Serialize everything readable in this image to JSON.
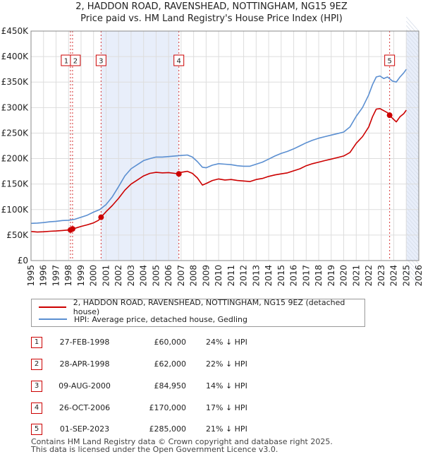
{
  "chart_data": {
    "type": "line",
    "title": "2, HADDON ROAD, RAVENSHEAD, NOTTINGHAM, NG15 9EZ",
    "subtitle": "Price paid vs. HM Land Registry's House Price Index (HPI)",
    "xlabel": "",
    "ylabel": "",
    "xlim": [
      1995,
      2026
    ],
    "ylim": [
      0,
      450000
    ],
    "x_ticks": [
      "1995",
      "1996",
      "1997",
      "1998",
      "1999",
      "2000",
      "2001",
      "2002",
      "2003",
      "2004",
      "2005",
      "2006",
      "2007",
      "2008",
      "2009",
      "2010",
      "2011",
      "2012",
      "2013",
      "2014",
      "2015",
      "2016",
      "2017",
      "2018",
      "2019",
      "2020",
      "2021",
      "2022",
      "2023",
      "2024",
      "2025",
      "2026"
    ],
    "y_ticks": [
      {
        "value": 0,
        "label": "£0"
      },
      {
        "value": 50000,
        "label": "£50K"
      },
      {
        "value": 100000,
        "label": "£100K"
      },
      {
        "value": 150000,
        "label": "£150K"
      },
      {
        "value": 200000,
        "label": "£200K"
      },
      {
        "value": 250000,
        "label": "£250K"
      },
      {
        "value": 300000,
        "label": "£300K"
      },
      {
        "value": 350000,
        "label": "£350K"
      },
      {
        "value": 400000,
        "label": "£400K"
      },
      {
        "value": 450000,
        "label": "£450K"
      }
    ],
    "grid": true,
    "shaded_ranges": [
      [
        2000.6,
        2006.8
      ],
      [
        2025.0,
        2026.0
      ]
    ],
    "series": [
      {
        "name": "2, HADDON ROAD, RAVENSHEAD, NOTTINGHAM, NG15 9EZ (detached house)",
        "color": "#cc0000",
        "x": [
          1995.0,
          1995.5,
          1996.0,
          1996.5,
          1997.0,
          1997.5,
          1998.0,
          1998.15,
          1998.32,
          1998.6,
          1999.0,
          1999.5,
          2000.0,
          2000.4,
          2000.6,
          2001.0,
          2001.5,
          2002.0,
          2002.5,
          2003.0,
          2003.5,
          2004.0,
          2004.5,
          2005.0,
          2005.5,
          2006.0,
          2006.5,
          2006.82,
          2007.0,
          2007.5,
          2007.9,
          2008.3,
          2008.7,
          2009.0,
          2009.5,
          2010.0,
          2010.5,
          2011.0,
          2011.5,
          2012.0,
          2012.5,
          2013.0,
          2013.5,
          2014.0,
          2014.5,
          2015.0,
          2015.5,
          2016.0,
          2016.5,
          2017.0,
          2017.5,
          2018.0,
          2018.5,
          2019.0,
          2019.5,
          2020.0,
          2020.5,
          2021.0,
          2021.5,
          2022.0,
          2022.3,
          2022.6,
          2022.9,
          2023.2,
          2023.5,
          2023.67,
          2023.9,
          2024.2,
          2024.5,
          2024.8,
          2025.0
        ],
        "values": [
          57000,
          56000,
          56500,
          57500,
          58000,
          59000,
          60000,
          60000,
          62000,
          64000,
          67000,
          70000,
          74000,
          79000,
          84950,
          96000,
          108000,
          122000,
          138000,
          150000,
          158000,
          166000,
          171000,
          173000,
          172000,
          172500,
          171000,
          170000,
          173000,
          175000,
          171000,
          162000,
          148000,
          151000,
          157000,
          160000,
          158000,
          159000,
          157000,
          156000,
          155000,
          159000,
          161000,
          165000,
          168000,
          170000,
          172000,
          176000,
          180000,
          186000,
          190000,
          193000,
          196000,
          199000,
          202000,
          205000,
          212000,
          230000,
          243000,
          262000,
          282000,
          297000,
          298000,
          294000,
          290000,
          285000,
          279000,
          272000,
          282000,
          288000,
          295000
        ]
      },
      {
        "name": "HPI: Average price, detached house, Gedling",
        "color": "#5b8fd1",
        "x": [
          1995.0,
          1995.5,
          1996.0,
          1996.5,
          1997.0,
          1997.5,
          1998.0,
          1998.5,
          1999.0,
          1999.5,
          2000.0,
          2000.5,
          2001.0,
          2001.5,
          2002.0,
          2002.5,
          2003.0,
          2003.5,
          2004.0,
          2004.5,
          2005.0,
          2005.5,
          2006.0,
          2006.5,
          2007.0,
          2007.5,
          2007.9,
          2008.3,
          2008.7,
          2009.0,
          2009.5,
          2010.0,
          2010.5,
          2011.0,
          2011.5,
          2012.0,
          2012.5,
          2013.0,
          2013.5,
          2014.0,
          2014.5,
          2015.0,
          2015.5,
          2016.0,
          2016.5,
          2017.0,
          2017.5,
          2018.0,
          2018.5,
          2019.0,
          2019.5,
          2020.0,
          2020.5,
          2021.0,
          2021.5,
          2022.0,
          2022.3,
          2022.6,
          2022.9,
          2023.2,
          2023.5,
          2023.9,
          2024.2,
          2024.5,
          2024.8,
          2025.0
        ],
        "values": [
          73000,
          73500,
          74500,
          76000,
          77000,
          78500,
          79000,
          81000,
          85000,
          89000,
          95000,
          100000,
          110000,
          125000,
          145000,
          166000,
          180000,
          188000,
          196000,
          200000,
          203000,
          203000,
          204000,
          205000,
          206000,
          207000,
          203000,
          194000,
          183000,
          182000,
          187000,
          190000,
          189000,
          188000,
          186000,
          185000,
          185000,
          189000,
          193000,
          199000,
          205000,
          210000,
          214000,
          219000,
          225000,
          231000,
          236000,
          240000,
          243000,
          246000,
          249000,
          252000,
          262000,
          283000,
          300000,
          325000,
          345000,
          360000,
          362000,
          357000,
          360000,
          352000,
          350000,
          360000,
          368000,
          375000
        ]
      }
    ],
    "annotations": [
      {
        "label": "1",
        "x": 1998.15,
        "value": 60000
      },
      {
        "label": "2",
        "x": 1998.32,
        "value": 62000
      },
      {
        "label": "3",
        "x": 2000.6,
        "value": 84950
      },
      {
        "label": "4",
        "x": 2006.82,
        "value": 170000
      },
      {
        "label": "5",
        "x": 2023.67,
        "value": 285000
      }
    ]
  },
  "sales": [
    {
      "num": "1",
      "date": "27-FEB-1998",
      "price": "£60,000",
      "hpi": "24% ↓ HPI"
    },
    {
      "num": "2",
      "date": "28-APR-1998",
      "price": "£62,000",
      "hpi": "22% ↓ HPI"
    },
    {
      "num": "3",
      "date": "09-AUG-2000",
      "price": "£84,950",
      "hpi": "14% ↓ HPI"
    },
    {
      "num": "4",
      "date": "26-OCT-2006",
      "price": "£170,000",
      "hpi": "17% ↓ HPI"
    },
    {
      "num": "5",
      "date": "01-SEP-2023",
      "price": "£285,000",
      "hpi": "21% ↓ HPI"
    }
  ],
  "footer": {
    "line1": "Contains HM Land Registry data © Crown copyright and database right 2025.",
    "line2": "This data is licensed under the Open Government Licence v3.0."
  },
  "colors": {
    "property": "#cc0000",
    "hpi": "#5b8fd1",
    "shade": "#e8eefa"
  }
}
